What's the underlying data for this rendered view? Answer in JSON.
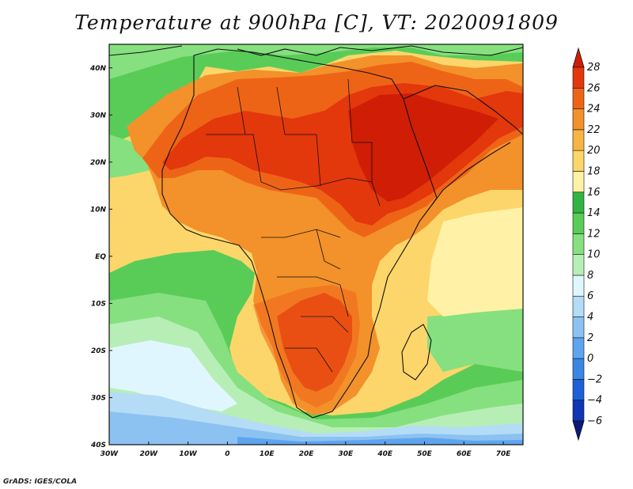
{
  "title": "Temperature at 900hPa [C], VT: 2020091809",
  "credit": "GrADS: IGES/COLA",
  "map": {
    "variable": "Temperature at 900hPa",
    "units": "C",
    "valid_time": "2020091809",
    "region": "Africa",
    "lon_range": [
      -30,
      75
    ],
    "lat_range": [
      -40,
      45
    ],
    "lat_ticks": [
      {
        "value": 40,
        "label": "40N"
      },
      {
        "value": 30,
        "label": "30N"
      },
      {
        "value": 20,
        "label": "20N"
      },
      {
        "value": 10,
        "label": "10N"
      },
      {
        "value": 0,
        "label": "EQ"
      },
      {
        "value": -10,
        "label": "10S"
      },
      {
        "value": -20,
        "label": "20S"
      },
      {
        "value": -30,
        "label": "30S"
      },
      {
        "value": -40,
        "label": "40S"
      }
    ],
    "lon_ticks": [
      {
        "value": -30,
        "label": "30W"
      },
      {
        "value": -20,
        "label": "20W"
      },
      {
        "value": -10,
        "label": "10W"
      },
      {
        "value": 0,
        "label": "0"
      },
      {
        "value": 10,
        "label": "10E"
      },
      {
        "value": 20,
        "label": "20E"
      },
      {
        "value": 30,
        "label": "30E"
      },
      {
        "value": 40,
        "label": "40E"
      },
      {
        "value": 50,
        "label": "50E"
      },
      {
        "value": 60,
        "label": "60E"
      },
      {
        "value": 70,
        "label": "70E"
      }
    ]
  },
  "colorbar": {
    "min": -6,
    "max": 28,
    "levels": [
      {
        "value": 28,
        "label": "28"
      },
      {
        "value": 26,
        "label": "26"
      },
      {
        "value": 24,
        "label": "24"
      },
      {
        "value": 22,
        "label": "22"
      },
      {
        "value": 20,
        "label": "20"
      },
      {
        "value": 18,
        "label": "18"
      },
      {
        "value": 16,
        "label": "16"
      },
      {
        "value": 14,
        "label": "14"
      },
      {
        "value": 12,
        "label": "12"
      },
      {
        "value": 10,
        "label": "10"
      },
      {
        "value": 8,
        "label": "8"
      },
      {
        "value": 6,
        "label": "6"
      },
      {
        "value": 4,
        "label": "4"
      },
      {
        "value": 2,
        "label": "2"
      },
      {
        "value": 0,
        "label": "0"
      },
      {
        "value": -2,
        "label": "−2"
      },
      {
        "value": -4,
        "label": "−4"
      },
      {
        "value": -6,
        "label": "−6"
      }
    ],
    "colors": [
      "#0b1a78",
      "#1035b5",
      "#1e60d8",
      "#3a86e4",
      "#5ea4ee",
      "#8cc2f2",
      "#b4dcf6",
      "#e0f6ff",
      "#b7eeb6",
      "#86e07f",
      "#59cc58",
      "#31b441",
      "#fff2a6",
      "#fcd66a",
      "#f7b343",
      "#f3912a",
      "#ee6417",
      "#e3370c",
      "#cf1e05"
    ]
  }
}
